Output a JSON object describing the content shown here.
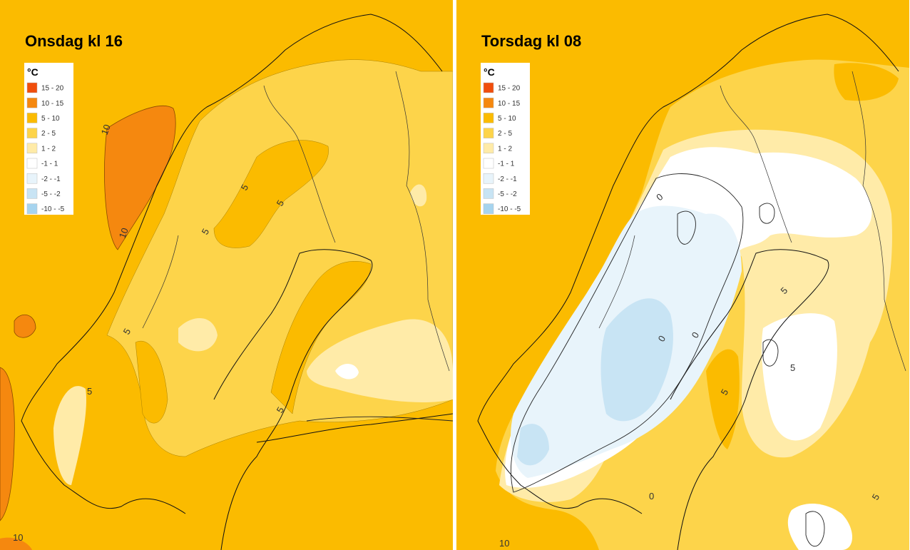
{
  "panels": [
    {
      "title": "Onsdag kl 16",
      "legend": {
        "unit": "°C",
        "items": [
          {
            "label": "15 - 20",
            "color": "#F04E0C"
          },
          {
            "label": "10 - 15",
            "color": "#F5880F"
          },
          {
            "label": "5 - 10",
            "color": "#FBBB00"
          },
          {
            "label": "2 - 5",
            "color": "#FDD44A"
          },
          {
            "label": "1 - 2",
            "color": "#FFEBA8"
          },
          {
            "label": "-1 - 1",
            "color": "#FFFFFF"
          },
          {
            "label": "-2 - -1",
            "color": "#E8F4FB"
          },
          {
            "label": "-5 - -2",
            "color": "#C8E4F4"
          },
          {
            "label": "-10 - -5",
            "color": "#A6D4EF"
          }
        ]
      },
      "contour_labels": [
        "10",
        "10",
        "5",
        "5",
        "5",
        "5",
        "5",
        "5",
        "10"
      ]
    },
    {
      "title": "Torsdag kl 08",
      "legend": {
        "unit": "°C",
        "items": [
          {
            "label": "15 - 20",
            "color": "#F04E0C"
          },
          {
            "label": "10 - 15",
            "color": "#F5880F"
          },
          {
            "label": "5 - 10",
            "color": "#FBBB00"
          },
          {
            "label": "2 - 5",
            "color": "#FDD44A"
          },
          {
            "label": "1 - 2",
            "color": "#FFEBA8"
          },
          {
            "label": "-1 - 1",
            "color": "#FFFFFF"
          },
          {
            "label": "-2 - -1",
            "color": "#E8F4FB"
          },
          {
            "label": "-5 - -2",
            "color": "#C8E4F4"
          },
          {
            "label": "-10 - -5",
            "color": "#A6D4EF"
          }
        ]
      },
      "contour_labels": [
        "0",
        "0",
        "0",
        "5",
        "0",
        "5",
        "5",
        "5",
        "10"
      ]
    }
  ]
}
